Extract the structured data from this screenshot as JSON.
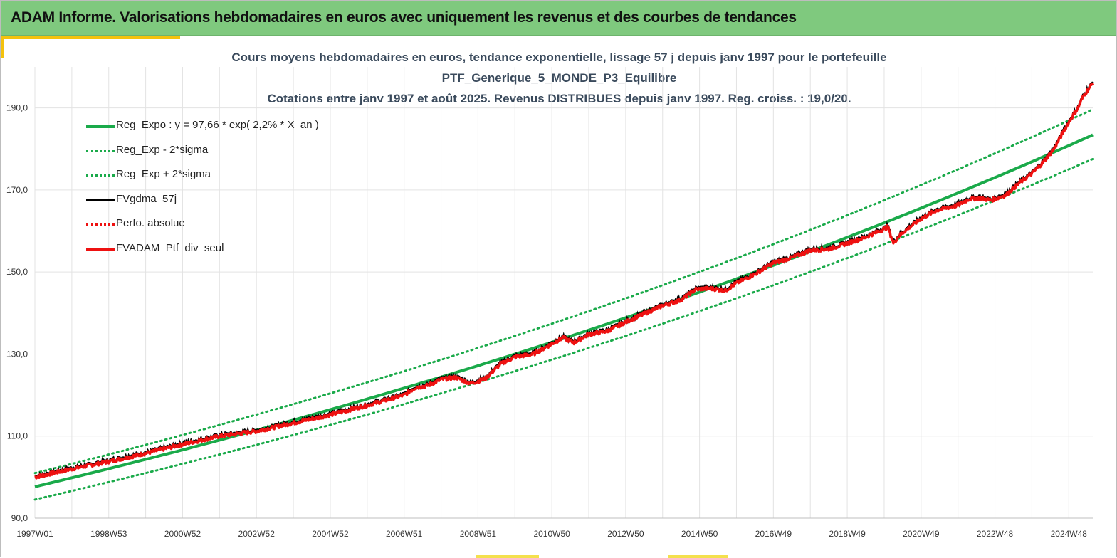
{
  "header": {
    "title": "ADAM Informe. Valorisations hebdomadaires en euros avec uniquement les revenus et des courbes de tendances"
  },
  "colors": {
    "header_bg": "#7fc97e",
    "accent": "#f4c20d",
    "trend_green": "#1aaa4a",
    "fv_black": "#000000",
    "fv_red": "#ee1111"
  },
  "chart_data": {
    "type": "line",
    "title_lines": [
      "Cours moyens hebdomadaires  en euros, tendance exponentielle, lissage 57 j depuis janv 1997 pour le portefeuille",
      "PTF_Generique_5_MONDE_P3_Equilibre",
      "Cotations  entre janv 1997 et août 2025. Revenus DISTRIBUES depuis janv 1997. Reg. croiss. : 19,0/20."
    ],
    "xlabel": "",
    "ylabel": "",
    "x_range": [
      1997.0,
      2025.65
    ],
    "ylim": [
      90,
      200
    ],
    "y_ticks": [
      "90,0",
      "110,0",
      "130,0",
      "150,0",
      "170,0",
      "190,0"
    ],
    "y_tick_values": [
      90,
      110,
      130,
      150,
      170,
      190
    ],
    "x_ticks": [
      "1997W01",
      "1998W53",
      "2000W52",
      "2002W52",
      "2004W52",
      "2006W51",
      "2008W51",
      "2010W50",
      "2012W50",
      "2014W50",
      "2016W49",
      "2018W49",
      "2020W49",
      "2022W48",
      "2024W48"
    ],
    "x_tick_values": [
      1997.0,
      1999.0,
      2001.0,
      2003.0,
      2005.0,
      2007.0,
      2009.0,
      2011.0,
      2013.0,
      2015.0,
      2017.0,
      2019.0,
      2021.0,
      2023.0,
      2025.0
    ],
    "grid": "vertical and horizontal",
    "legend_position": "top-left",
    "regression": {
      "formula_label": "Reg_Expo : y = 97,66 * exp( 2,2% *  X_an )",
      "a": 97.66,
      "rate": 0.022,
      "sigma_factor_low": 0.968,
      "sigma_factor_high": 1.034
    },
    "series": [
      {
        "name": "Reg_Expo : y = 97,66 * exp( 2,2% *  X_an )",
        "style": "solid",
        "color": "#1aaa4a",
        "kind": "regression"
      },
      {
        "name": "Reg_Exp - 2*sigma",
        "style": "dotted",
        "color": "#1aaa4a",
        "kind": "lower"
      },
      {
        "name": "Reg_Exp + 2*sigma",
        "style": "dotted",
        "color": "#1aaa4a",
        "kind": "upper"
      },
      {
        "name": "FVgdma_57j",
        "style": "solid",
        "color": "#000000",
        "kind": "smoothed"
      },
      {
        "name": "Perfo. absolue",
        "style": "dotted",
        "color": "#ee1111",
        "kind": "absolute"
      },
      {
        "name": "FVADAM_Ptf_div_seul",
        "style": "solid",
        "color": "#ee1111",
        "kind": "actual"
      }
    ],
    "actual_points": {
      "x": [
        1997.0,
        1998.0,
        1999.0,
        2000.0,
        2001.0,
        2002.0,
        2003.0,
        2004.0,
        2005.0,
        2006.0,
        2007.0,
        2007.3,
        2007.6,
        2008.0,
        2008.4,
        2008.8,
        2009.2,
        2009.6,
        2010.0,
        2010.5,
        2011.0,
        2011.3,
        2011.6,
        2012.0,
        2012.5,
        2013.0,
        2014.0,
        2014.5,
        2014.9,
        2015.3,
        2015.7,
        2016.0,
        2016.5,
        2017.0,
        2017.5,
        2018.0,
        2018.5,
        2019.0,
        2019.5,
        2020.0,
        2020.1,
        2020.25,
        2020.4,
        2020.7,
        2021.0,
        2021.4,
        2021.8,
        2022.0,
        2022.3,
        2022.6,
        2022.9,
        2023.3,
        2023.7,
        2024.0,
        2024.3,
        2024.6,
        2024.9,
        2025.1,
        2025.25,
        2025.4,
        2025.65
      ],
      "y": [
        100.0,
        102.0,
        103.8,
        105.8,
        108.0,
        110.0,
        111.2,
        113.2,
        115.2,
        117.5,
        120.0,
        121.8,
        122.2,
        123.8,
        124.3,
        122.8,
        124.0,
        127.5,
        129.3,
        130.0,
        132.5,
        134.0,
        132.8,
        134.8,
        135.6,
        137.8,
        141.8,
        143.2,
        145.8,
        146.0,
        145.5,
        147.3,
        149.5,
        152.2,
        153.5,
        155.3,
        155.6,
        157.0,
        158.5,
        160.5,
        161.0,
        157.0,
        158.8,
        161.0,
        163.0,
        165.0,
        165.9,
        166.3,
        167.8,
        168.0,
        167.5,
        168.8,
        172.0,
        174.0,
        176.7,
        180.0,
        185.0,
        188.0,
        190.0,
        193.0,
        196.0
      ]
    }
  }
}
